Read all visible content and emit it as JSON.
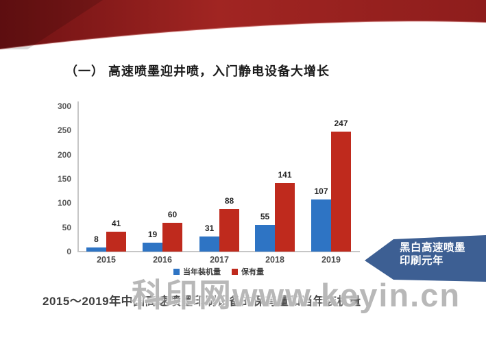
{
  "title": "（一） 高速喷墨迎井喷，入门静电设备大增长",
  "caption": "2015～2019年中国高速喷墨印刷设备的保有量和当年装机量",
  "badge": {
    "line1": "黑白高速喷墨",
    "line2": "印刷元年",
    "color": "#3d5f93"
  },
  "watermark": "科印网www.keyin.cn",
  "colors": {
    "header_red_dark": "#6e1113",
    "header_red_mid": "#a12522",
    "header_red_right": "#8e1d1c",
    "bar_blue": "#2e74c4",
    "bar_red": "#bf2a1d"
  },
  "chart_data": {
    "type": "bar",
    "categories": [
      "2015",
      "2016",
      "2017",
      "2018",
      "2019"
    ],
    "series": [
      {
        "name": "当年装机量",
        "color": "#2e74c4",
        "values": [
          8,
          19,
          31,
          55,
          107
        ]
      },
      {
        "name": "保有量",
        "color": "#bf2a1d",
        "values": [
          41,
          60,
          88,
          141,
          247
        ]
      }
    ],
    "title": "",
    "xlabel": "",
    "ylabel": "",
    "ylim": [
      0,
      300
    ],
    "yticks": [
      0,
      50,
      100,
      150,
      200,
      250,
      300
    ],
    "grid": false,
    "legend_position": "bottom"
  }
}
